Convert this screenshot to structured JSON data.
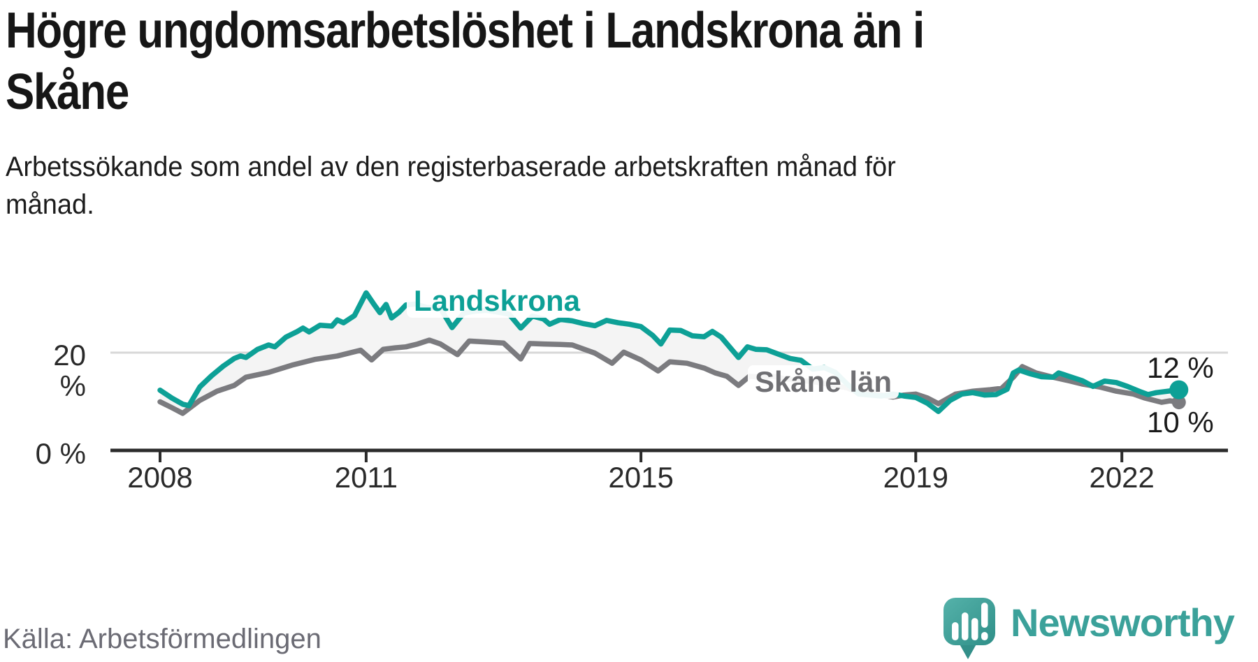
{
  "title_lines": [
    "Högre ungdomsarbetslöshet i Landskrona än i",
    "Skåne"
  ],
  "subtitle_lines": [
    "Arbetssökande som andel av den registerbaserade arbetskraften månad för",
    "månad."
  ],
  "source": "Källa: Arbetsförmedlingen",
  "logo_text": "Newsworthy",
  "colors": {
    "landskrona": "#0da096",
    "skane_line": "#7b7b7f",
    "band_fill": "#f4f4f4",
    "grid": "#d8d8d8",
    "axis": "#2b2b2b",
    "logo_teal": "#3ba19a"
  },
  "chart_data": {
    "type": "line",
    "title": "Högre ungdomsarbetslöshet i Landskrona än i Skåne",
    "subtitle": "Arbetssökande som andel av den registerbaserade arbetskraften månad för månad.",
    "unit": "%",
    "x_range": [
      2008,
      2022.9
    ],
    "y_range": [
      0,
      34
    ],
    "grid": "single horizontal line at 20 %",
    "legend_position": "inline labels on lines",
    "x_ticks": [
      {
        "year": 2008,
        "label": "2008"
      },
      {
        "year": 2011,
        "label": "2011"
      },
      {
        "year": 2015,
        "label": "2015"
      },
      {
        "year": 2019,
        "label": "2019"
      },
      {
        "year": 2022,
        "label": "2022"
      }
    ],
    "y_axis": {
      "grid_value": 20,
      "ticks": [
        {
          "value": 20,
          "label": "20 %"
        },
        {
          "value": 0,
          "label": "0 %"
        }
      ]
    },
    "end_labels": {
      "landskrona": "12 %",
      "skane": "10 %"
    },
    "series": [
      {
        "name": "Landskrona",
        "color": "#0da096",
        "points": [
          [
            2008.0,
            12.2
          ],
          [
            2008.17,
            10.6
          ],
          [
            2008.33,
            9.3
          ],
          [
            2008.42,
            9.0
          ],
          [
            2008.58,
            12.9
          ],
          [
            2008.75,
            15.2
          ],
          [
            2008.92,
            17.2
          ],
          [
            2009.08,
            18.8
          ],
          [
            2009.17,
            19.3
          ],
          [
            2009.25,
            19.0
          ],
          [
            2009.42,
            20.7
          ],
          [
            2009.58,
            21.6
          ],
          [
            2009.67,
            21.2
          ],
          [
            2009.83,
            23.2
          ],
          [
            2010.0,
            24.4
          ],
          [
            2010.08,
            25.1
          ],
          [
            2010.17,
            24.3
          ],
          [
            2010.33,
            25.7
          ],
          [
            2010.5,
            25.5
          ],
          [
            2010.58,
            26.8
          ],
          [
            2010.67,
            26.2
          ],
          [
            2010.83,
            27.7
          ],
          [
            2011.0,
            32.4
          ],
          [
            2011.12,
            29.9
          ],
          [
            2011.2,
            28.3
          ],
          [
            2011.29,
            30.0
          ],
          [
            2011.37,
            27.2
          ],
          [
            2011.48,
            28.4
          ],
          [
            2011.58,
            29.9
          ],
          [
            2011.71,
            30.1
          ],
          [
            2011.88,
            29.4
          ],
          [
            2012.08,
            29.2
          ],
          [
            2012.25,
            25.2
          ],
          [
            2012.42,
            28.2
          ],
          [
            2012.58,
            28.6
          ],
          [
            2012.75,
            28.8
          ],
          [
            2012.92,
            28.4
          ],
          [
            2013.08,
            28.0
          ],
          [
            2013.25,
            25.1
          ],
          [
            2013.42,
            27.6
          ],
          [
            2013.58,
            27.0
          ],
          [
            2013.67,
            25.9
          ],
          [
            2013.83,
            26.9
          ],
          [
            2014.0,
            26.6
          ],
          [
            2014.17,
            26.0
          ],
          [
            2014.33,
            25.6
          ],
          [
            2014.5,
            26.7
          ],
          [
            2014.67,
            26.2
          ],
          [
            2014.83,
            25.9
          ],
          [
            2015.0,
            25.4
          ],
          [
            2015.17,
            23.6
          ],
          [
            2015.29,
            21.8
          ],
          [
            2015.42,
            24.7
          ],
          [
            2015.58,
            24.6
          ],
          [
            2015.75,
            23.5
          ],
          [
            2015.92,
            23.3
          ],
          [
            2016.04,
            24.4
          ],
          [
            2016.17,
            23.2
          ],
          [
            2016.42,
            19.0
          ],
          [
            2016.55,
            21.2
          ],
          [
            2016.67,
            20.7
          ],
          [
            2016.83,
            20.6
          ],
          [
            2017.0,
            19.7
          ],
          [
            2017.17,
            18.8
          ],
          [
            2017.33,
            18.4
          ],
          [
            2017.5,
            16.6
          ],
          [
            2017.67,
            16.9
          ],
          [
            2017.83,
            15.9
          ],
          [
            2018.0,
            13.5
          ],
          [
            2018.17,
            11.4
          ],
          [
            2018.33,
            11.2
          ],
          [
            2018.5,
            11.0
          ],
          [
            2018.67,
            11.4
          ],
          [
            2018.83,
            11.0
          ],
          [
            2019.0,
            10.7
          ],
          [
            2019.17,
            9.5
          ],
          [
            2019.33,
            7.8
          ],
          [
            2019.5,
            10.1
          ],
          [
            2019.67,
            11.4
          ],
          [
            2019.83,
            11.7
          ],
          [
            2020.0,
            11.2
          ],
          [
            2020.17,
            11.3
          ],
          [
            2020.33,
            12.4
          ],
          [
            2020.42,
            15.8
          ],
          [
            2020.5,
            16.4
          ],
          [
            2020.67,
            15.6
          ],
          [
            2020.83,
            15.0
          ],
          [
            2021.0,
            14.9
          ],
          [
            2021.08,
            15.8
          ],
          [
            2021.25,
            15.0
          ],
          [
            2021.42,
            14.2
          ],
          [
            2021.58,
            13.0
          ],
          [
            2021.75,
            14.1
          ],
          [
            2021.92,
            13.8
          ],
          [
            2022.08,
            13.0
          ],
          [
            2022.25,
            12.0
          ],
          [
            2022.38,
            11.3
          ],
          [
            2022.5,
            11.7
          ],
          [
            2022.67,
            12.0
          ],
          [
            2022.83,
            12.3
          ]
        ]
      },
      {
        "name": "Skåne län",
        "color": "#7b7b7f",
        "points": [
          [
            2008.0,
            9.8
          ],
          [
            2008.17,
            8.6
          ],
          [
            2008.33,
            7.4
          ],
          [
            2008.58,
            10.1
          ],
          [
            2008.83,
            12.0
          ],
          [
            2009.08,
            13.2
          ],
          [
            2009.25,
            14.9
          ],
          [
            2009.58,
            15.9
          ],
          [
            2009.92,
            17.4
          ],
          [
            2010.25,
            18.6
          ],
          [
            2010.58,
            19.3
          ],
          [
            2010.92,
            20.5
          ],
          [
            2011.08,
            18.5
          ],
          [
            2011.25,
            20.7
          ],
          [
            2011.42,
            21.0
          ],
          [
            2011.58,
            21.2
          ],
          [
            2011.75,
            21.8
          ],
          [
            2011.92,
            22.6
          ],
          [
            2012.08,
            21.8
          ],
          [
            2012.33,
            19.6
          ],
          [
            2012.5,
            22.4
          ],
          [
            2012.75,
            22.2
          ],
          [
            2013.0,
            22.0
          ],
          [
            2013.25,
            18.7
          ],
          [
            2013.38,
            21.9
          ],
          [
            2013.58,
            21.8
          ],
          [
            2013.83,
            21.7
          ],
          [
            2014.0,
            21.6
          ],
          [
            2014.33,
            19.9
          ],
          [
            2014.58,
            17.8
          ],
          [
            2014.75,
            20.1
          ],
          [
            2015.0,
            18.5
          ],
          [
            2015.25,
            16.2
          ],
          [
            2015.42,
            18.1
          ],
          [
            2015.67,
            17.8
          ],
          [
            2015.92,
            16.8
          ],
          [
            2016.08,
            15.8
          ],
          [
            2016.25,
            15.1
          ],
          [
            2016.42,
            13.2
          ],
          [
            2016.58,
            15.1
          ],
          [
            2016.75,
            14.9
          ],
          [
            2016.92,
            15.1
          ],
          [
            2017.08,
            14.6
          ],
          [
            2017.25,
            14.3
          ],
          [
            2017.5,
            14.0
          ],
          [
            2017.75,
            13.4
          ],
          [
            2018.0,
            12.7
          ],
          [
            2018.17,
            11.7
          ],
          [
            2018.33,
            11.5
          ],
          [
            2018.5,
            11.2
          ],
          [
            2018.67,
            10.8
          ],
          [
            2018.83,
            11.2
          ],
          [
            2019.0,
            11.4
          ],
          [
            2019.17,
            10.6
          ],
          [
            2019.33,
            9.4
          ],
          [
            2019.58,
            11.4
          ],
          [
            2019.83,
            12.0
          ],
          [
            2020.08,
            12.3
          ],
          [
            2020.25,
            12.6
          ],
          [
            2020.42,
            14.9
          ],
          [
            2020.55,
            17.1
          ],
          [
            2020.75,
            15.8
          ],
          [
            2021.0,
            14.9
          ],
          [
            2021.25,
            14.1
          ],
          [
            2021.42,
            13.5
          ],
          [
            2021.67,
            12.9
          ],
          [
            2021.92,
            12.0
          ],
          [
            2022.17,
            11.4
          ],
          [
            2022.33,
            10.6
          ],
          [
            2022.58,
            9.7
          ],
          [
            2022.7,
            10.0
          ],
          [
            2022.83,
            9.7
          ]
        ]
      }
    ]
  }
}
